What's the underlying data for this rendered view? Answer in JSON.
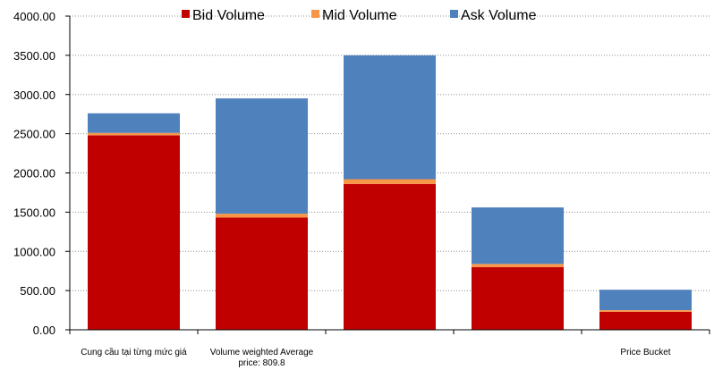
{
  "chart_data": {
    "type": "bar",
    "stacked": true,
    "categories": [
      "Cung cầu tại từng mức giá",
      "Volume weighted Average\nprice:  809.8",
      "",
      "",
      "Price Bucket"
    ],
    "series": [
      {
        "name": "Bid Volume",
        "color": "#c00000",
        "values": [
          2480,
          1430,
          1860,
          800,
          230
        ]
      },
      {
        "name": "Mid Volume",
        "color": "#f79646",
        "values": [
          30,
          50,
          60,
          40,
          20
        ]
      },
      {
        "name": "Ask Volume",
        "color": "#4f81bd",
        "values": [
          250,
          1470,
          1580,
          720,
          260
        ]
      }
    ],
    "y_ticks": [
      "0.00",
      "500.00",
      "1000.00",
      "1500.00",
      "2000.00",
      "2500.00",
      "3000.00",
      "3500.00",
      "4000.00"
    ],
    "ylim": [
      0,
      4000
    ],
    "grid": "horizontal-dotted",
    "legend_position": "top-center"
  }
}
